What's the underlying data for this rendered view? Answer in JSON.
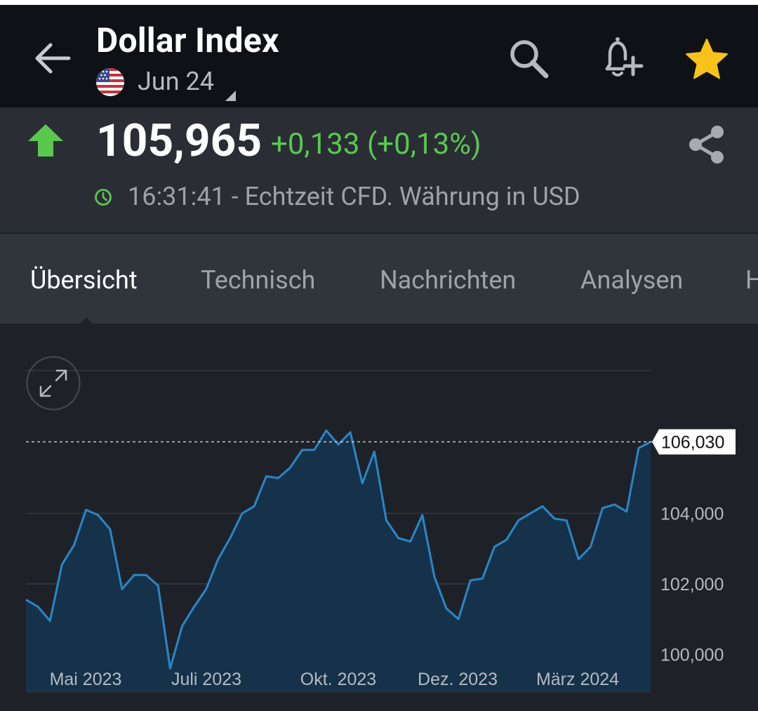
{
  "app": {
    "title": "Dollar Index",
    "contract": "Jun 24"
  },
  "quote": {
    "price": "105,965",
    "change": "+0,133 (+0,13%)",
    "timestamp": "16:31:41 - Echtzeit CFD. Währung in USD",
    "direction": "up"
  },
  "icons": {
    "back": "arrow-left-icon",
    "flag": "us-flag-icon",
    "search": "search-icon",
    "alert": "bell-plus-icon",
    "favorite": "star-icon",
    "share": "share-icon",
    "clock": "clock-icon",
    "expand": "expand-icon"
  },
  "tabs": [
    {
      "label": "Übersicht",
      "active": true
    },
    {
      "label": "Technisch",
      "active": false
    },
    {
      "label": "Nachrichten",
      "active": false
    },
    {
      "label": "Analysen",
      "active": false
    },
    {
      "label": "H",
      "active": false
    }
  ],
  "colors": {
    "header_bg": "#0e1116",
    "positive": "#5ac84f",
    "star": "#f7c21b",
    "line": "#2a86c8",
    "area": "#16324a"
  },
  "chart_data": {
    "type": "area",
    "x_labels": [
      "Mai 2023",
      "Juli 2023",
      "Okt. 2023",
      "Dez. 2023",
      "März 2024"
    ],
    "y_ticks": [
      "104,000",
      "102,000",
      "100,000"
    ],
    "y_tick_values": [
      104,
      102,
      100
    ],
    "ylim": [
      98.95,
      108.05
    ],
    "last_value": 106.03,
    "last_label": "106,030",
    "grid": true,
    "values": [
      101.55,
      101.35,
      100.95,
      102.55,
      103.1,
      104.1,
      103.95,
      103.55,
      101.85,
      102.25,
      102.25,
      101.95,
      99.6,
      100.8,
      101.35,
      101.85,
      102.7,
      103.3,
      104.0,
      104.2,
      105.05,
      105.0,
      105.3,
      105.8,
      105.8,
      106.35,
      105.95,
      106.3,
      104.85,
      105.75,
      103.8,
      103.3,
      103.2,
      103.95,
      102.2,
      101.3,
      101.0,
      102.1,
      102.15,
      103.05,
      103.25,
      103.8,
      104.0,
      104.2,
      103.85,
      103.8,
      102.7,
      103.05,
      104.15,
      104.25,
      104.05,
      105.85,
      106.03
    ]
  }
}
